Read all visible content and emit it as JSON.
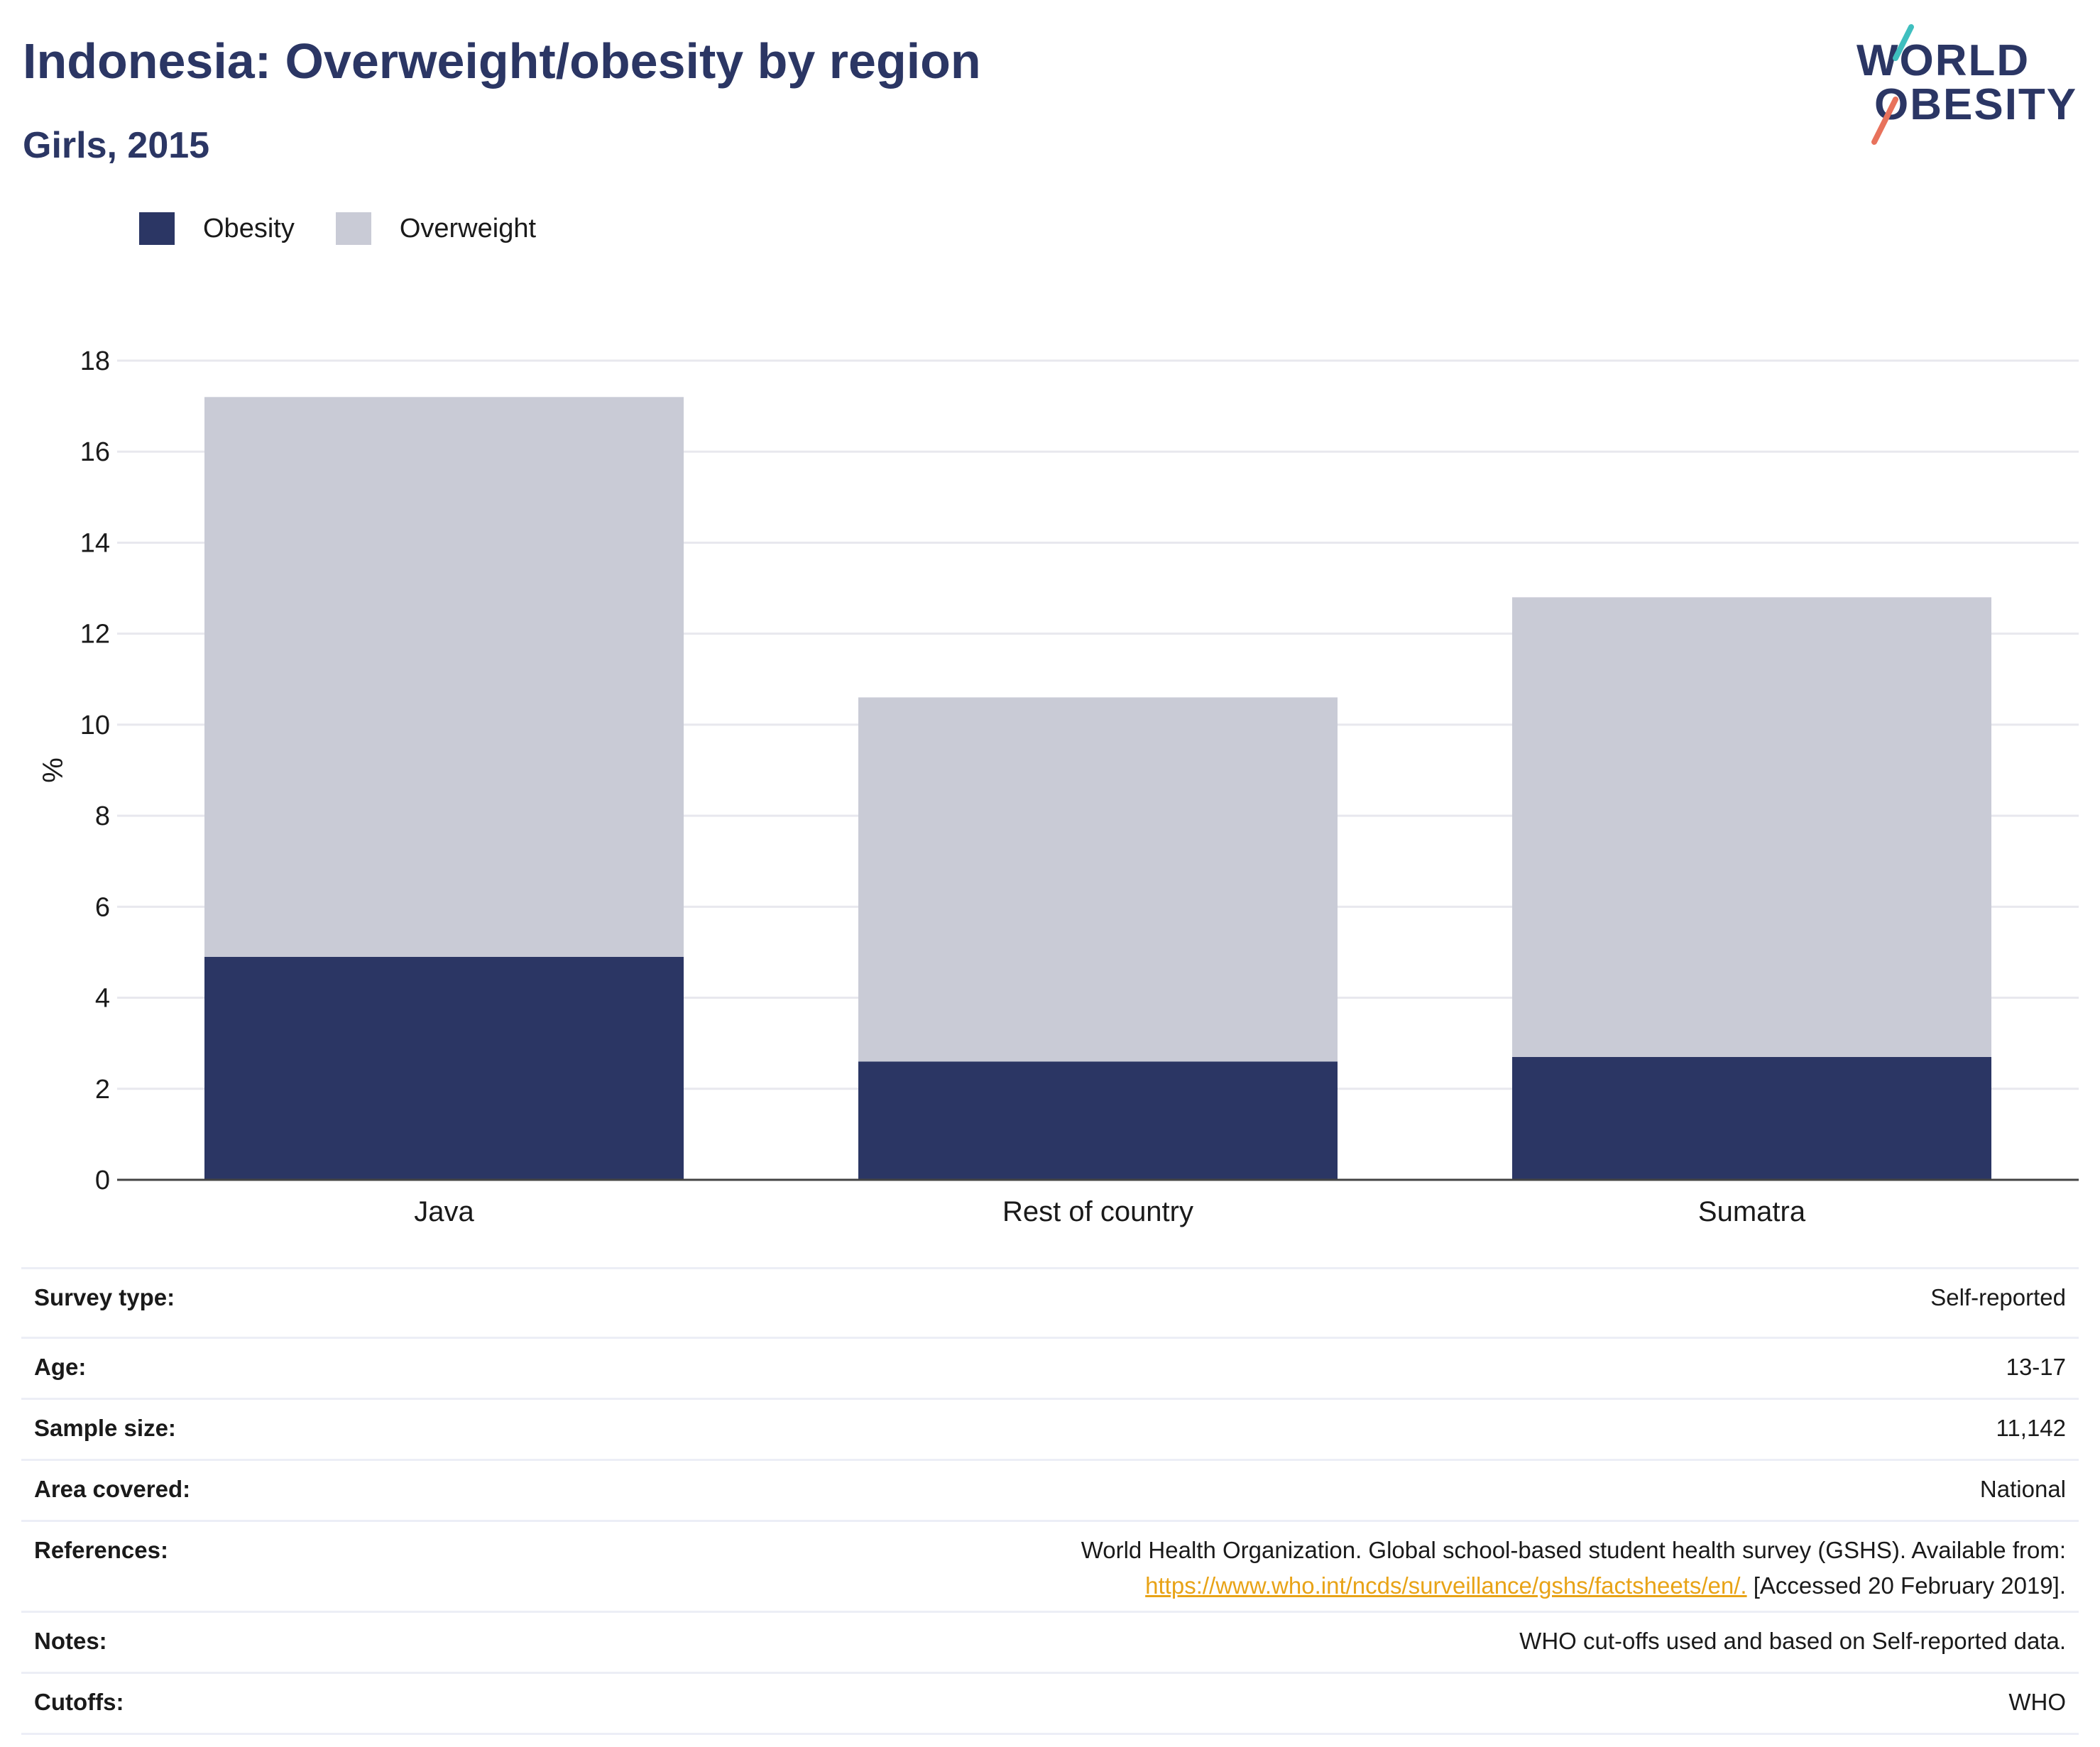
{
  "header": {
    "title": "Indonesia: Overweight/obesity by region",
    "subtitle": "Girls, 2015"
  },
  "logo": {
    "line1": "WORLD",
    "line2": "OBESITY"
  },
  "colors": {
    "obesity": "#2b3664",
    "overweight": "#c9cbd6",
    "title": "#2b3664",
    "link": "#e8a317",
    "accent_teal": "#3fbfbf",
    "accent_coral": "#e8725c"
  },
  "chart_data": {
    "type": "bar",
    "stacked": true,
    "categories": [
      "Java",
      "Rest of country",
      "Sumatra"
    ],
    "series": [
      {
        "name": "Obesity",
        "values": [
          4.9,
          2.6,
          2.7
        ]
      },
      {
        "name": "Overweight",
        "values": [
          12.3,
          8.0,
          10.1
        ]
      }
    ],
    "ylabel": "%",
    "ylim": [
      0,
      18
    ],
    "yticks": [
      0,
      2,
      4,
      6,
      8,
      10,
      12,
      14,
      16,
      18
    ],
    "grid": true,
    "legend_position": "top-left"
  },
  "info": {
    "survey_type": {
      "label": "Survey type:",
      "value": "Self-reported"
    },
    "age": {
      "label": "Age:",
      "value": "13-17"
    },
    "sample_size": {
      "label": "Sample size:",
      "value": "11,142"
    },
    "area": {
      "label": "Area covered:",
      "value": "National"
    },
    "references": {
      "label": "References:",
      "text": "World Health Organization. Global school-based student health survey (GSHS). Available from:",
      "link": "https://www.who.int/ncds/surveillance/gshs/factsheets/en/.",
      "accessed": "[Accessed 20 February 2019]."
    },
    "notes": {
      "label": "Notes:",
      "value": "WHO cut-offs used and based on Self-reported data."
    },
    "cutoffs": {
      "label": "Cutoffs:",
      "value": "WHO"
    }
  }
}
